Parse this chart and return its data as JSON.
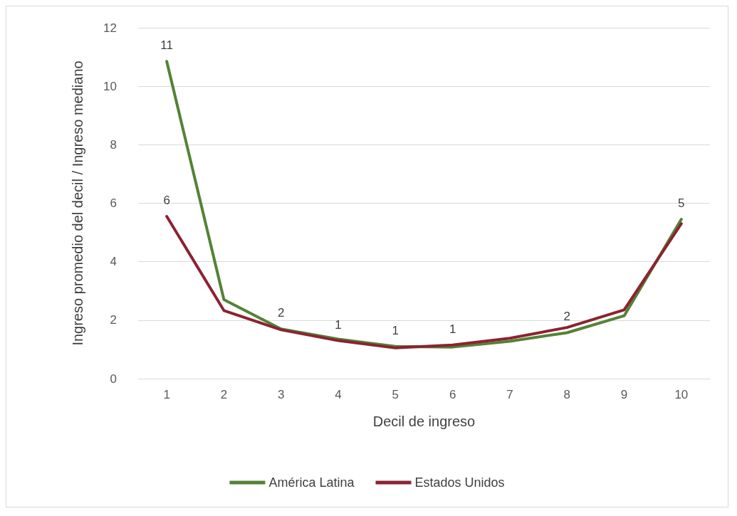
{
  "chart_data": {
    "type": "line",
    "xlabel": "Decil de ingreso",
    "ylabel": "Ingreso promedio del decil / Ingreso mediano",
    "categories": [
      "1",
      "2",
      "3",
      "4",
      "5",
      "6",
      "7",
      "8",
      "9",
      "10"
    ],
    "series": [
      {
        "name": "América Latina",
        "color": "#548235",
        "values": [
          10.85,
          2.7,
          1.7,
          1.35,
          1.1,
          1.08,
          1.28,
          1.57,
          2.15,
          5.45
        ],
        "value_labels": [
          "11",
          null,
          "2",
          null,
          "1",
          null,
          null,
          "2",
          null,
          "5"
        ]
      },
      {
        "name": "Estados Unidos",
        "color": "#8b2331",
        "values": [
          5.55,
          2.33,
          1.67,
          1.3,
          1.05,
          1.15,
          1.38,
          1.75,
          2.35,
          5.3
        ],
        "value_labels": [
          "6",
          null,
          null,
          "1",
          null,
          "1",
          null,
          null,
          null,
          null
        ]
      }
    ],
    "ylim": [
      0,
      12
    ],
    "yticks": [
      0,
      2,
      4,
      6,
      8,
      10,
      12
    ],
    "grid": "y",
    "legend": "bottom",
    "marker": "none",
    "line_style": "solid"
  }
}
